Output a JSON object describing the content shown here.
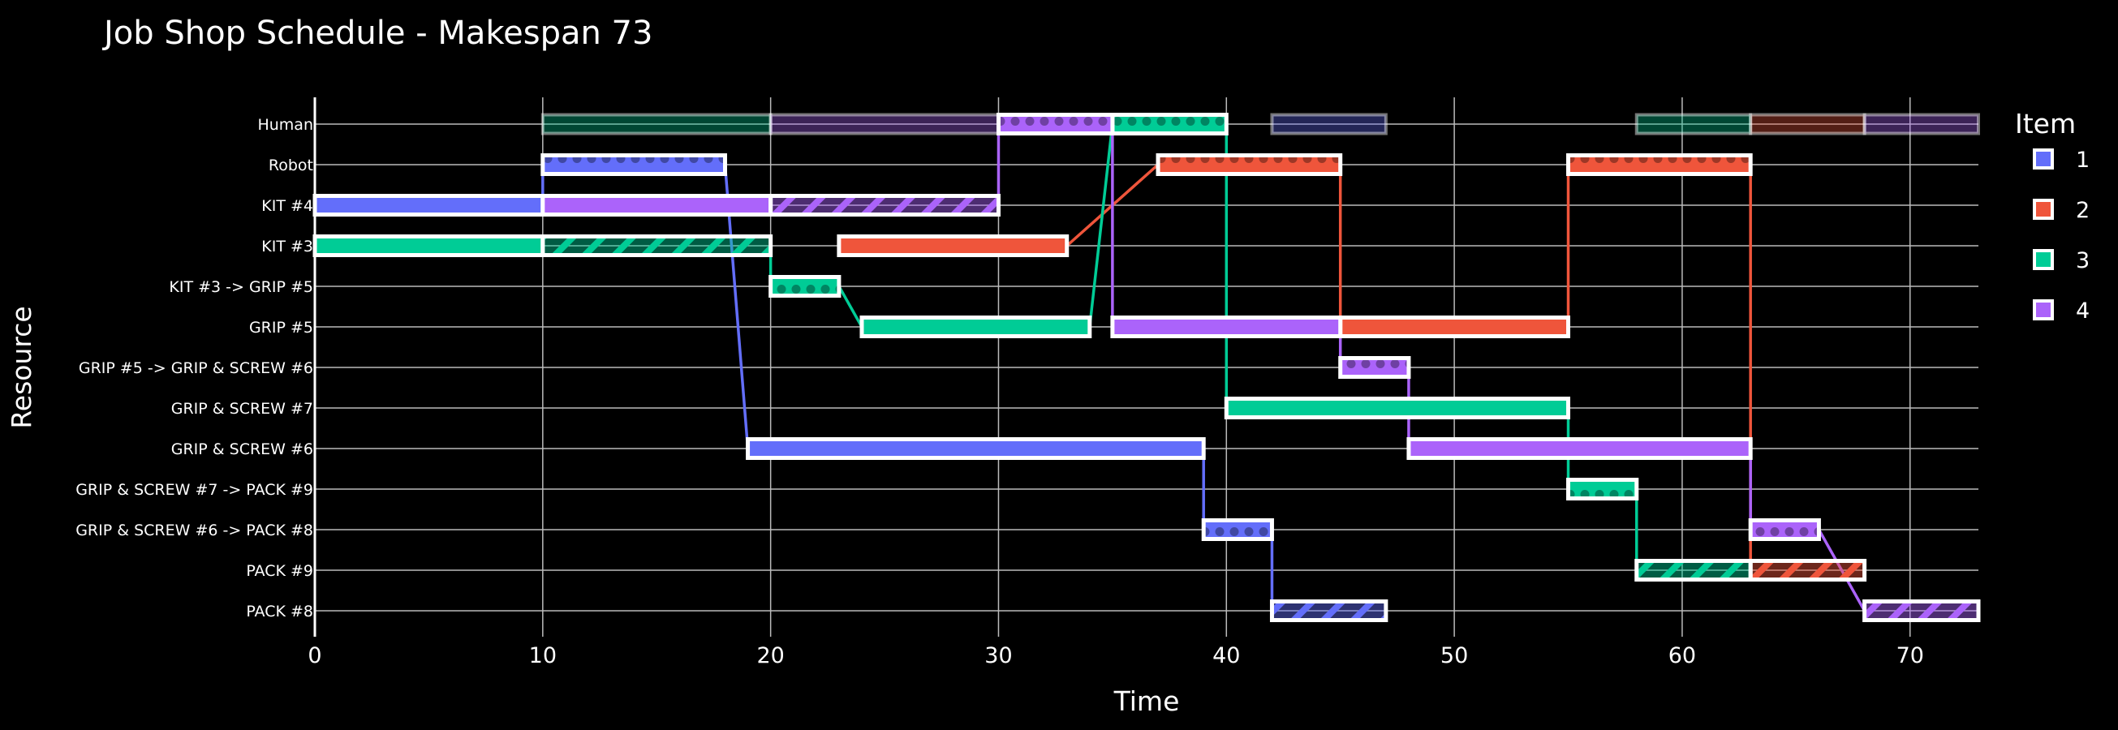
{
  "chart_data": {
    "type": "gantt",
    "title": "Job Shop Schedule - Makespan 73",
    "xlabel": "Time",
    "ylabel": "Resource",
    "xlim": [
      0,
      73
    ],
    "xticks": [
      0,
      10,
      20,
      30,
      40,
      50,
      60,
      70
    ],
    "grid": true,
    "resources": [
      "Human",
      "Robot",
      "KIT #4",
      "KIT #3",
      "KIT #3 -> GRIP #5",
      "GRIP #5",
      "GRIP #5 -> GRIP & SCREW #6",
      "GRIP & SCREW #7",
      "GRIP & SCREW #6",
      "GRIP & SCREW #7 -> PACK #9",
      "GRIP & SCREW #6 -> PACK #8",
      "PACK #9",
      "PACK #8"
    ],
    "legend": {
      "title": "Item",
      "position": "right",
      "items": [
        {
          "label": "1",
          "color": "#636EFA"
        },
        {
          "label": "2",
          "color": "#EF553B"
        },
        {
          "label": "3",
          "color": "#00CC96"
        },
        {
          "label": "4",
          "color": "#AB63FA"
        }
      ]
    },
    "tasks": [
      {
        "item": "1",
        "resource": "KIT #4",
        "start": 0,
        "end": 10,
        "pattern": "solid"
      },
      {
        "item": "1",
        "resource": "Robot",
        "start": 10,
        "end": 18,
        "pattern": "dots"
      },
      {
        "item": "1",
        "resource": "GRIP & SCREW #6",
        "start": 19,
        "end": 39,
        "pattern": "solid"
      },
      {
        "item": "1",
        "resource": "GRIP & SCREW #6 -> PACK #8",
        "start": 39,
        "end": 42,
        "pattern": "dots"
      },
      {
        "item": "1",
        "resource": "PACK #8",
        "start": 42,
        "end": 47,
        "pattern": "stripes"
      },
      {
        "item": "1",
        "resource": "Human",
        "start": 42,
        "end": 47,
        "pattern": "faded"
      },
      {
        "item": "2",
        "resource": "KIT #3",
        "start": 23,
        "end": 33,
        "pattern": "solid"
      },
      {
        "item": "2",
        "resource": "Robot",
        "start": 37,
        "end": 45,
        "pattern": "dots"
      },
      {
        "item": "2",
        "resource": "GRIP #5",
        "start": 45,
        "end": 55,
        "pattern": "solid"
      },
      {
        "item": "2",
        "resource": "Robot",
        "start": 55,
        "end": 63,
        "pattern": "dots"
      },
      {
        "item": "2",
        "resource": "PACK #9",
        "start": 63,
        "end": 68,
        "pattern": "stripes"
      },
      {
        "item": "2",
        "resource": "Human",
        "start": 63,
        "end": 68,
        "pattern": "faded"
      },
      {
        "item": "3",
        "resource": "KIT #3",
        "start": 0,
        "end": 10,
        "pattern": "solid"
      },
      {
        "item": "3",
        "resource": "KIT #3",
        "start": 10,
        "end": 20,
        "pattern": "stripes"
      },
      {
        "item": "3",
        "resource": "Human",
        "start": 10,
        "end": 20,
        "pattern": "faded"
      },
      {
        "item": "3",
        "resource": "KIT #3 -> GRIP #5",
        "start": 20,
        "end": 23,
        "pattern": "dots"
      },
      {
        "item": "3",
        "resource": "GRIP #5",
        "start": 24,
        "end": 34,
        "pattern": "solid"
      },
      {
        "item": "3",
        "resource": "Human",
        "start": 35,
        "end": 40,
        "pattern": "dots"
      },
      {
        "item": "3",
        "resource": "GRIP & SCREW #7",
        "start": 40,
        "end": 55,
        "pattern": "solid"
      },
      {
        "item": "3",
        "resource": "GRIP & SCREW #7 -> PACK #9",
        "start": 55,
        "end": 58,
        "pattern": "dots"
      },
      {
        "item": "3",
        "resource": "PACK #9",
        "start": 58,
        "end": 63,
        "pattern": "stripes"
      },
      {
        "item": "3",
        "resource": "Human",
        "start": 58,
        "end": 63,
        "pattern": "faded"
      },
      {
        "item": "4",
        "resource": "KIT #4",
        "start": 10,
        "end": 20,
        "pattern": "solid"
      },
      {
        "item": "4",
        "resource": "KIT #4",
        "start": 20,
        "end": 30,
        "pattern": "stripes"
      },
      {
        "item": "4",
        "resource": "Human",
        "start": 20,
        "end": 30,
        "pattern": "faded"
      },
      {
        "item": "4",
        "resource": "Human",
        "start": 30,
        "end": 35,
        "pattern": "dots"
      },
      {
        "item": "4",
        "resource": "GRIP #5",
        "start": 35,
        "end": 45,
        "pattern": "solid"
      },
      {
        "item": "4",
        "resource": "GRIP #5 -> GRIP & SCREW #6",
        "start": 45,
        "end": 48,
        "pattern": "dots"
      },
      {
        "item": "4",
        "resource": "GRIP & SCREW #6",
        "start": 48,
        "end": 63,
        "pattern": "solid"
      },
      {
        "item": "4",
        "resource": "GRIP & SCREW #6 -> PACK #8",
        "start": 63,
        "end": 66,
        "pattern": "dots"
      },
      {
        "item": "4",
        "resource": "PACK #8",
        "start": 68,
        "end": 73,
        "pattern": "stripes"
      },
      {
        "item": "4",
        "resource": "Human",
        "start": 68,
        "end": 73,
        "pattern": "faded"
      }
    ]
  }
}
